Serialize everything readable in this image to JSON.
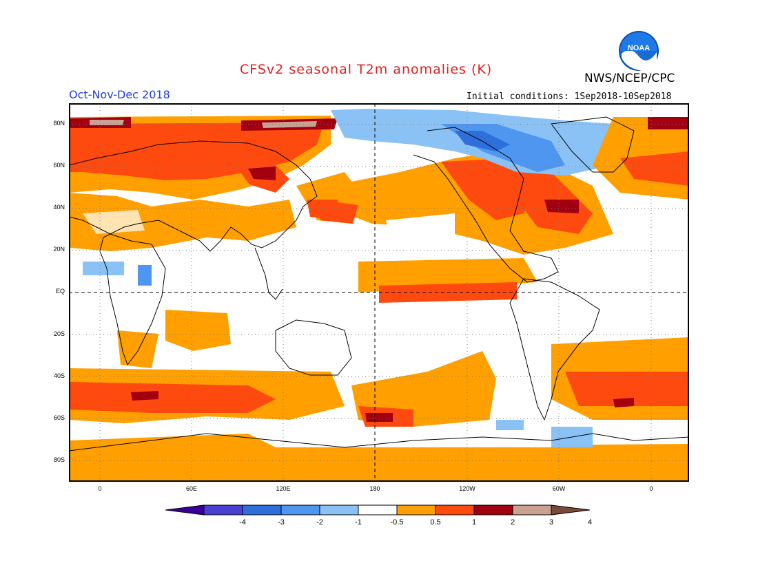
{
  "header": {
    "title": "CFSv2 seasonal T2m anomalies (K)",
    "agency": "NWS/NCEP/CPC",
    "logo_text": "NOAA",
    "season": "Oct-Nov-Dec 2018",
    "initial_conditions": "Initial conditions: 1Sep2018-10Sep2018"
  },
  "map": {
    "lat_labels": [
      "80N",
      "60N",
      "40N",
      "20N",
      "EQ",
      "20S",
      "40S",
      "60S",
      "80S"
    ],
    "lon_labels": [
      "0",
      "60E",
      "120E",
      "180",
      "120W",
      "60W",
      "0"
    ],
    "colors": {
      "land_line": "#000000",
      "grid": "#777777"
    }
  },
  "colorbar": {
    "ticks": [
      "-4",
      "-3",
      "-2",
      "-1",
      "-0.5",
      "0.5",
      "1",
      "2",
      "3",
      "4"
    ],
    "colors": [
      "#3a009a",
      "#4b3fd3",
      "#2f6fdc",
      "#4f96f0",
      "#8bc2f6",
      "#ffffff",
      "#ffa000",
      "#ff4a0f",
      "#a20010",
      "#c9a293",
      "#7a4a3a"
    ]
  }
}
